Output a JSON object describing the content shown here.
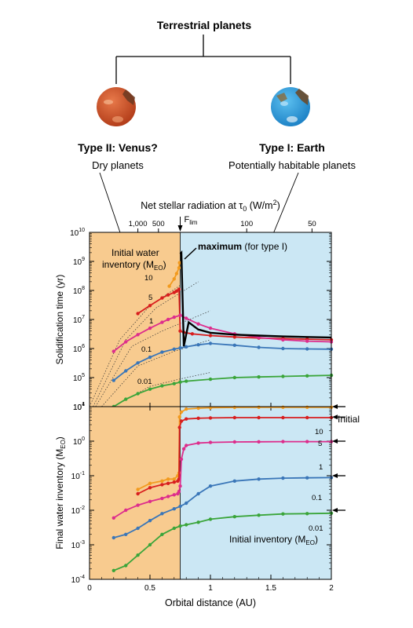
{
  "diagram": {
    "root_label": "Terrestrial planets",
    "left_type": "Type II: Venus?",
    "left_desc": "Dry planets",
    "right_type": "Type I: Earth",
    "right_desc": "Potentially habitable planets",
    "venus_color": "#c44a22",
    "earth_color": "#2a9ad8"
  },
  "chart_data": [
    {
      "type": "line",
      "title": "",
      "top_axis_label": "Net stellar radiation at τ",
      "top_axis_label_sub": "0",
      "top_axis_label_unit": " (W/m",
      "top_axis_label_sup": "2",
      "top_axis_label_close": ")",
      "top_ticks": [
        {
          "label": "1,000",
          "x": 0.4
        },
        {
          "label": "500",
          "x": 0.57
        },
        {
          "label": "100",
          "x": 1.3
        },
        {
          "label": "50",
          "x": 1.84
        }
      ],
      "flim_label": "F",
      "flim_sub": "lim",
      "flim_x": 0.75,
      "ylabel": "Solidification time (yr)",
      "yscale": "log",
      "ylim": [
        10000,
        10000000000
      ],
      "ytick_labels": [
        "10",
        "10",
        "10",
        "10",
        "10",
        "10",
        "10"
      ],
      "ytick_exps": [
        "4",
        "5",
        "6",
        "7",
        "8",
        "9",
        "10"
      ],
      "xlim": [
        0,
        2
      ],
      "regions": {
        "dry_color": "#f8cb8f",
        "habitable_color": "#cbe7f4"
      },
      "annotation_inventory_line1": "Initial water",
      "annotation_inventory_line2": "inventory (M",
      "annotation_inventory_sub": "EO",
      "annotation_inventory_close": ")",
      "annotation_max_bold": "maximum",
      "annotation_max_rest": " (for type I)",
      "series": [
        {
          "name": "10",
          "color": "#f29a1e",
          "x": [
            0.66,
            0.7,
            0.72,
            0.74,
            0.745
          ],
          "y": [
            140000000,
            250000000,
            380000000,
            600000000,
            900000000
          ]
        },
        {
          "name": "5",
          "color": "#d81e1e",
          "x": [
            0.4,
            0.5,
            0.6,
            0.65,
            0.7,
            0.72,
            0.74,
            0.75,
            0.78,
            0.85,
            1.0,
            1.2,
            1.4,
            1.6,
            1.8,
            2.0
          ],
          "y": [
            16000000,
            30000000,
            55000000,
            70000000,
            85000000,
            95000000,
            110000000,
            4000000,
            3600000,
            3200000,
            2800000,
            2500000,
            2300000,
            2200000,
            2100000,
            2000000
          ]
        },
        {
          "name": "1",
          "color": "#dd2d8c",
          "x": [
            0.2,
            0.3,
            0.4,
            0.5,
            0.6,
            0.65,
            0.7,
            0.75,
            0.8,
            0.9,
            1.0,
            1.2,
            1.4,
            1.6,
            1.8,
            2.0
          ],
          "y": [
            800000,
            1700000,
            3000000,
            5000000,
            8000000,
            10000000,
            12000000,
            14000000,
            11000000,
            7000000,
            5000000,
            3200000,
            2400000,
            2000000,
            1800000,
            1700000
          ]
        },
        {
          "name": "0.1",
          "color": "#3a76b8",
          "x": [
            0.2,
            0.3,
            0.4,
            0.5,
            0.6,
            0.7,
            0.75,
            0.8,
            0.9,
            1.0,
            1.2,
            1.4,
            1.6,
            1.8,
            2.0
          ],
          "y": [
            80000,
            170000,
            320000,
            500000,
            750000,
            950000,
            1050000,
            1150000,
            1350000,
            1500000,
            1300000,
            1100000,
            1000000,
            970000,
            950000
          ]
        },
        {
          "name": "0.01",
          "color": "#3aa53a",
          "x": [
            0.2,
            0.3,
            0.4,
            0.5,
            0.6,
            0.7,
            0.75,
            0.8,
            1.0,
            1.2,
            1.4,
            1.6,
            1.8,
            2.0
          ],
          "y": [
            10000,
            18000,
            28000,
            40000,
            52000,
            62000,
            70000,
            75000,
            88000,
            100000,
            105000,
            110000,
            115000,
            120000
          ]
        },
        {
          "name": "maximum",
          "color": "#000000",
          "x": [
            0.75,
            0.76,
            0.78,
            0.82,
            0.9,
            1.0,
            1.2,
            1.4,
            1.6,
            1.8,
            2.0
          ],
          "y": [
            1800000000,
            2000000000,
            1200000,
            8000000,
            4500000,
            3500000,
            3000000,
            2800000,
            2600000,
            2500000,
            2400000
          ]
        }
      ]
    },
    {
      "type": "line",
      "title": "",
      "xlabel": "Orbital distance (AU)",
      "xlim": [
        0,
        2
      ],
      "xticks": [
        0,
        0.5,
        1,
        1.5,
        2
      ],
      "xtick_labels": [
        "0",
        "0.5",
        "1",
        "1.5",
        "2"
      ],
      "ylabel": "Final water inventory (M",
      "ylabel_sub": "EO",
      "ylabel_close": ")",
      "yscale": "log",
      "ylim": [
        0.0001,
        10
      ],
      "ytick_labels": [
        "10",
        "10",
        "10",
        "10",
        "10",
        "10"
      ],
      "ytick_exps": [
        "-4",
        "-3",
        "-2",
        "-1",
        "0",
        "1"
      ],
      "initial_label": "Initial",
      "initial_values": [
        10,
        5,
        1,
        0.1,
        0.01
      ],
      "legend_text": "Initial inventory (M",
      "legend_sub": "EO",
      "legend_close": ")",
      "series": [
        {
          "name": "10",
          "color": "#f29a1e",
          "x": [
            0.4,
            0.5,
            0.6,
            0.65,
            0.7,
            0.73,
            0.74,
            0.745,
            0.76,
            0.8,
            0.9,
            1.0,
            1.2,
            1.4,
            1.6,
            1.8,
            2.0
          ],
          "y": [
            0.04,
            0.06,
            0.07,
            0.08,
            0.08,
            0.1,
            0.12,
            5,
            7,
            8.5,
            9,
            9.3,
            9.5,
            9.6,
            9.6,
            9.6,
            9.6
          ]
        },
        {
          "name": "5",
          "color": "#d81e1e",
          "x": [
            0.4,
            0.5,
            0.6,
            0.65,
            0.7,
            0.73,
            0.74,
            0.745,
            0.76,
            0.8,
            0.9,
            1.0,
            1.2,
            1.4,
            1.6,
            1.8,
            2.0
          ],
          "y": [
            0.03,
            0.045,
            0.055,
            0.06,
            0.065,
            0.07,
            0.08,
            2.5,
            3.8,
            4.4,
            4.6,
            4.7,
            4.8,
            4.8,
            4.8,
            4.8,
            4.8
          ]
        },
        {
          "name": "1",
          "color": "#dd2d8c",
          "x": [
            0.2,
            0.3,
            0.4,
            0.5,
            0.6,
            0.65,
            0.7,
            0.73,
            0.74,
            0.75,
            0.76,
            0.78,
            0.8,
            0.9,
            1.0,
            1.2,
            1.4,
            1.6,
            1.8,
            2.0
          ],
          "y": [
            0.006,
            0.01,
            0.014,
            0.018,
            0.022,
            0.025,
            0.028,
            0.03,
            0.035,
            0.05,
            0.3,
            0.6,
            0.75,
            0.88,
            0.92,
            0.95,
            0.96,
            0.97,
            0.97,
            0.97
          ]
        },
        {
          "name": "0.1",
          "color": "#3a76b8",
          "x": [
            0.2,
            0.3,
            0.4,
            0.5,
            0.6,
            0.7,
            0.75,
            0.8,
            0.9,
            1.0,
            1.2,
            1.4,
            1.6,
            1.8,
            2.0
          ],
          "y": [
            0.0016,
            0.002,
            0.003,
            0.005,
            0.008,
            0.011,
            0.013,
            0.016,
            0.03,
            0.05,
            0.07,
            0.08,
            0.085,
            0.087,
            0.088
          ]
        },
        {
          "name": "0.01",
          "color": "#3aa53a",
          "x": [
            0.2,
            0.3,
            0.4,
            0.5,
            0.6,
            0.7,
            0.75,
            0.8,
            0.9,
            1.0,
            1.2,
            1.4,
            1.6,
            1.8,
            2.0
          ],
          "y": [
            0.00018,
            0.00025,
            0.0005,
            0.001,
            0.002,
            0.003,
            0.0035,
            0.0038,
            0.0045,
            0.0055,
            0.0065,
            0.0072,
            0.0078,
            0.008,
            0.0082
          ]
        }
      ]
    }
  ]
}
